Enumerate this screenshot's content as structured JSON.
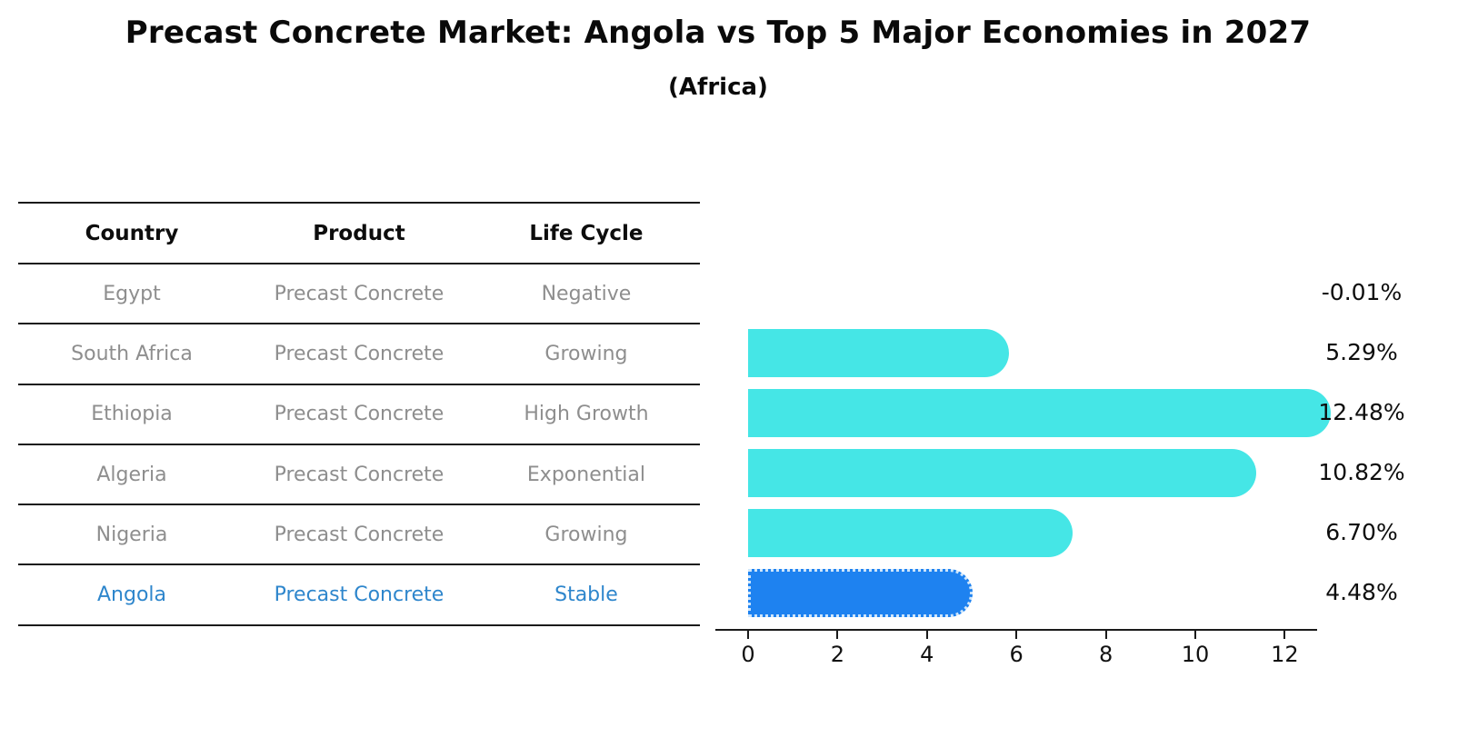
{
  "title": "Precast Concrete Market: Angola vs Top 5 Major Economies in 2027",
  "subtitle": "(Africa)",
  "table": {
    "headers": [
      "Country",
      "Product",
      "Life Cycle"
    ],
    "rows": [
      {
        "country": "Egypt",
        "product": "Precast Concrete",
        "life_cycle": "Negative",
        "highlighted": false
      },
      {
        "country": "South Africa",
        "product": "Precast Concrete",
        "life_cycle": "Growing",
        "highlighted": false
      },
      {
        "country": "Ethiopia",
        "product": "Precast Concrete",
        "life_cycle": "High Growth",
        "highlighted": false
      },
      {
        "country": "Algeria",
        "product": "Precast Concrete",
        "life_cycle": "Exponential",
        "highlighted": false
      },
      {
        "country": "Nigeria",
        "product": "Precast Concrete",
        "life_cycle": "Growing",
        "highlighted": true
      }
    ],
    "highlight_row": {
      "country": "Angola",
      "product": "Precast Concrete",
      "life_cycle": "Stable"
    }
  },
  "chart_data": {
    "type": "bar",
    "orientation": "horizontal",
    "title": "Precast Concrete Market: Angola vs Top 5 Major Economies in 2027 (Africa)",
    "categories": [
      "Egypt",
      "South Africa",
      "Ethiopia",
      "Algeria",
      "Nigeria",
      "Angola"
    ],
    "values": [
      -0.01,
      5.29,
      12.48,
      10.82,
      6.7,
      4.48
    ],
    "value_labels": [
      "-0.01%",
      "5.29%",
      "12.48%",
      "10.82%",
      "6.70%",
      "4.48%"
    ],
    "x_ticks": [
      "0",
      "2",
      "4",
      "6",
      "8",
      "10",
      "12"
    ],
    "x_tick_values": [
      0,
      2,
      4,
      6,
      8,
      10,
      12
    ],
    "xlim": [
      -0.7,
      12.7
    ],
    "grid": false,
    "legend": false,
    "highlight_index": 5,
    "bar_color": "#45E6E6",
    "highlight_bar_color": "#1E82F0",
    "highlight_text_color": "#2E86CC",
    "row_text_color": "#8e8e8e"
  }
}
